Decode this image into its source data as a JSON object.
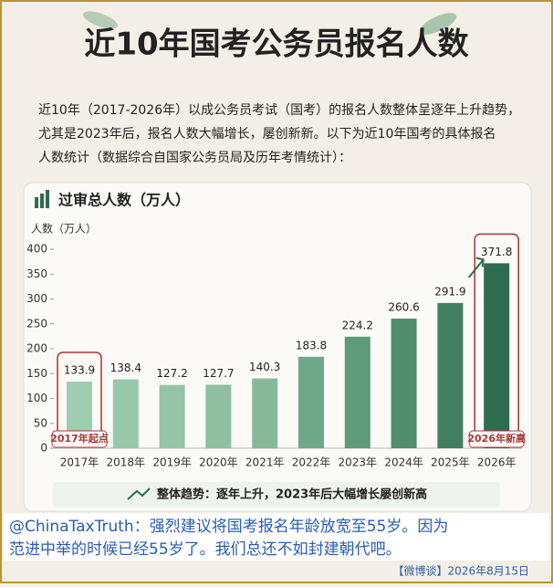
{
  "header": {
    "title": "近10年国考公务员报名人数",
    "intro": [
      "近10年（2017-2026年）以成公务员考试（国考）的报名人数整体呈逐年上升趋势，",
      "尤其是2023年后，报名人数大幅增长，屡创新新。以下为近10年国考的具体报名",
      "人数统计（数据综合自国家公务员局及历年考情统计）："
    ]
  },
  "chart_data": {
    "type": "bar",
    "title": "过审总人数（万人）",
    "y_label": "人数（万人）",
    "categories": [
      "2017年",
      "2018年",
      "2019年",
      "2020年",
      "2021年",
      "2022年",
      "2023年",
      "2024年",
      "2025年",
      "2026年"
    ],
    "values": [
      133.9,
      138.4,
      127.2,
      127.7,
      140.3,
      183.8,
      224.2,
      260.6,
      291.9,
      371.8
    ],
    "colors": [
      "#9fcdb1",
      "#98c8ab",
      "#93c4a6",
      "#8dc0a1",
      "#85b99a",
      "#6fa888",
      "#5f9a7a",
      "#4f8d6d",
      "#427f61",
      "#2f6b4f"
    ],
    "ylim": [
      0,
      400
    ],
    "yticks": [
      0,
      50,
      100,
      150,
      200,
      250,
      300,
      350,
      400
    ],
    "annotations": [
      "2017年起点",
      "2026年新高"
    ],
    "trend_note": "整体趋势：逐年上升，2023年后大幅增长屡创新高"
  },
  "comment": {
    "lines": [
      "@ChinaTaxTruth：强烈建议将国考报名年龄放宽至55岁。因为",
      "范进中举的时候已经55岁了。我们总还不如封建朝代吧。"
    ],
    "source": "【微博谈】2026年8月15日"
  }
}
